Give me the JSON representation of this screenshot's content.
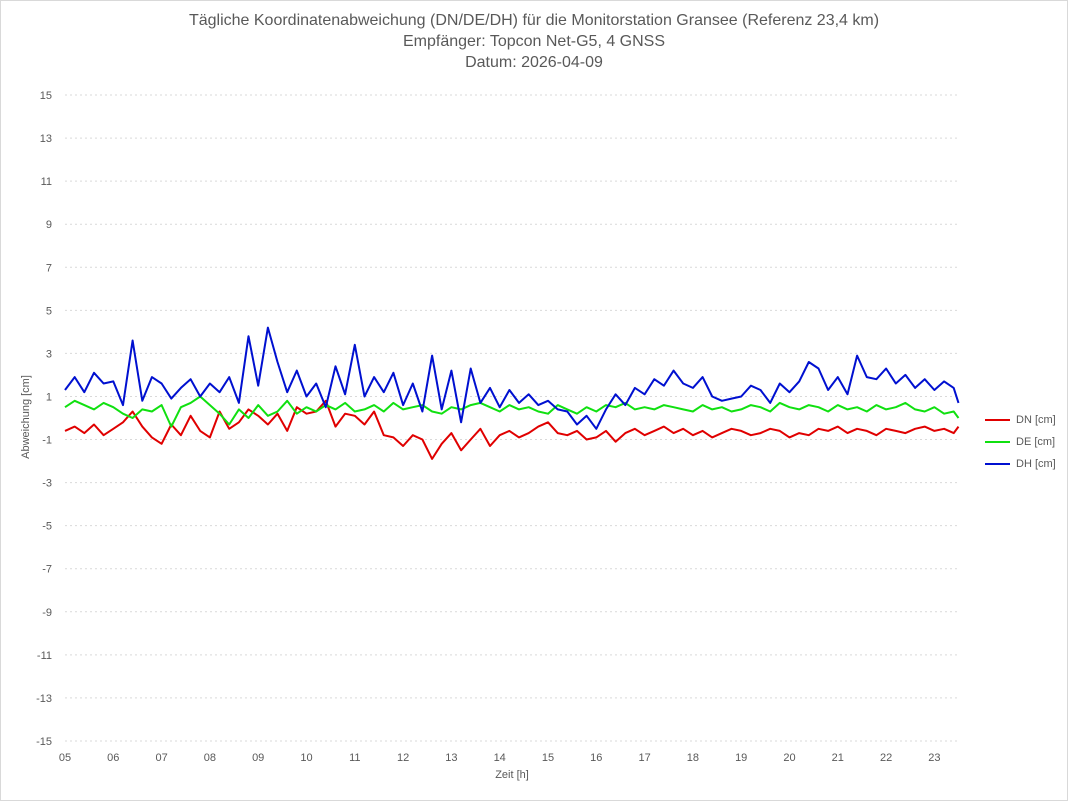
{
  "chart_data": {
    "type": "line",
    "title": "Tägliche Koordinatenabweichung (DN/DE/DH) für die Monitorstation Gransee (Referenz 23,4 km)",
    "subtitle_1": "Empfänger: Topcon Net-G5, 4 GNSS",
    "subtitle_2": "Datum: 2026-04-09",
    "xlabel": "Zeit [h]",
    "ylabel": "Abweichung [cm]",
    "xlim": [
      5,
      23.6
    ],
    "ylim": [
      -15,
      15
    ],
    "x_ticks": [
      "05",
      "06",
      "07",
      "08",
      "09",
      "10",
      "11",
      "12",
      "13",
      "14",
      "15",
      "16",
      "17",
      "18",
      "19",
      "20",
      "21",
      "22",
      "23"
    ],
    "y_ticks": [
      "15",
      "13",
      "11",
      "9",
      "7",
      "5",
      "3",
      "1",
      "-1",
      "-3",
      "-5",
      "-7",
      "-9",
      "-11",
      "-13",
      "-15"
    ],
    "grid": "horizontal-dotted",
    "legend_position": "right",
    "x": [
      5.0,
      5.2,
      5.4,
      5.6,
      5.8,
      6.0,
      6.2,
      6.4,
      6.6,
      6.8,
      7.0,
      7.2,
      7.4,
      7.6,
      7.8,
      8.0,
      8.2,
      8.4,
      8.6,
      8.8,
      9.0,
      9.2,
      9.4,
      9.6,
      9.8,
      10.0,
      10.2,
      10.4,
      10.6,
      10.8,
      11.0,
      11.2,
      11.4,
      11.6,
      11.8,
      12.0,
      12.2,
      12.4,
      12.6,
      12.8,
      13.0,
      13.2,
      13.4,
      13.6,
      13.8,
      14.0,
      14.2,
      14.4,
      14.6,
      14.8,
      15.0,
      15.2,
      15.4,
      15.6,
      15.8,
      16.0,
      16.2,
      16.4,
      16.6,
      16.8,
      17.0,
      17.2,
      17.4,
      17.6,
      17.8,
      18.0,
      18.2,
      18.4,
      18.6,
      18.8,
      19.0,
      19.2,
      19.4,
      19.6,
      19.8,
      20.0,
      20.2,
      20.4,
      20.6,
      20.8,
      21.0,
      21.2,
      21.4,
      21.6,
      21.8,
      22.0,
      22.2,
      22.4,
      22.6,
      22.8,
      23.0,
      23.2,
      23.4,
      23.5
    ],
    "series": [
      {
        "name": "DN [cm]",
        "color": "#e00000",
        "values": [
          -0.6,
          -0.4,
          -0.7,
          -0.3,
          -0.8,
          -0.5,
          -0.2,
          0.3,
          -0.4,
          -0.9,
          -1.2,
          -0.3,
          -0.8,
          0.1,
          -0.6,
          -0.9,
          0.3,
          -0.5,
          -0.2,
          0.4,
          0.1,
          -0.3,
          0.2,
          -0.6,
          0.5,
          0.2,
          0.3,
          0.8,
          -0.4,
          0.2,
          0.1,
          -0.3,
          0.3,
          -0.8,
          -0.9,
          -1.3,
          -0.8,
          -1.0,
          -1.9,
          -1.2,
          -0.7,
          -1.5,
          -1.0,
          -0.5,
          -1.3,
          -0.8,
          -0.6,
          -0.9,
          -0.7,
          -0.4,
          -0.2,
          -0.7,
          -0.8,
          -0.6,
          -1.0,
          -0.9,
          -0.6,
          -1.1,
          -0.7,
          -0.5,
          -0.8,
          -0.6,
          -0.4,
          -0.7,
          -0.5,
          -0.8,
          -0.6,
          -0.9,
          -0.7,
          -0.5,
          -0.6,
          -0.8,
          -0.7,
          -0.5,
          -0.6,
          -0.9,
          -0.7,
          -0.8,
          -0.5,
          -0.6,
          -0.4,
          -0.7,
          -0.5,
          -0.6,
          -0.8,
          -0.5,
          -0.6,
          -0.7,
          -0.5,
          -0.4,
          -0.6,
          -0.5,
          -0.7,
          -0.4
        ]
      },
      {
        "name": "DE [cm]",
        "color": "#10e010",
        "values": [
          0.5,
          0.8,
          0.6,
          0.4,
          0.7,
          0.5,
          0.2,
          0.0,
          0.4,
          0.3,
          0.6,
          -0.4,
          0.5,
          0.7,
          1.0,
          0.6,
          0.2,
          -0.3,
          0.4,
          0.0,
          0.6,
          0.1,
          0.3,
          0.8,
          0.2,
          0.5,
          0.3,
          0.6,
          0.4,
          0.7,
          0.3,
          0.4,
          0.6,
          0.3,
          0.7,
          0.4,
          0.5,
          0.6,
          0.3,
          0.2,
          0.5,
          0.4,
          0.6,
          0.7,
          0.5,
          0.3,
          0.6,
          0.4,
          0.5,
          0.3,
          0.2,
          0.6,
          0.4,
          0.2,
          0.5,
          0.3,
          0.6,
          0.5,
          0.7,
          0.4,
          0.5,
          0.4,
          0.6,
          0.5,
          0.4,
          0.3,
          0.6,
          0.4,
          0.5,
          0.3,
          0.4,
          0.6,
          0.5,
          0.3,
          0.7,
          0.5,
          0.4,
          0.6,
          0.5,
          0.3,
          0.6,
          0.4,
          0.5,
          0.3,
          0.6,
          0.4,
          0.5,
          0.7,
          0.4,
          0.3,
          0.5,
          0.2,
          0.3,
          0.0
        ]
      },
      {
        "name": "DH [cm]",
        "color": "#0010d0",
        "values": [
          1.3,
          1.9,
          1.2,
          2.1,
          1.6,
          1.7,
          0.6,
          3.6,
          0.8,
          1.9,
          1.6,
          0.9,
          1.4,
          1.8,
          1.0,
          1.6,
          1.2,
          1.9,
          0.7,
          3.8,
          1.5,
          4.2,
          2.6,
          1.2,
          2.2,
          1.0,
          1.6,
          0.5,
          2.4,
          1.1,
          3.4,
          1.0,
          1.9,
          1.2,
          2.1,
          0.6,
          1.6,
          0.3,
          2.9,
          0.4,
          2.2,
          -0.2,
          2.3,
          0.7,
          1.4,
          0.5,
          1.3,
          0.7,
          1.1,
          0.6,
          0.8,
          0.4,
          0.3,
          -0.3,
          0.1,
          -0.5,
          0.4,
          1.1,
          0.6,
          1.4,
          1.1,
          1.8,
          1.5,
          2.2,
          1.6,
          1.4,
          1.9,
          1.0,
          0.8,
          0.9,
          1.0,
          1.5,
          1.3,
          0.7,
          1.6,
          1.2,
          1.7,
          2.6,
          2.3,
          1.3,
          1.9,
          1.1,
          2.9,
          1.9,
          1.8,
          2.3,
          1.6,
          2.0,
          1.4,
          1.8,
          1.3,
          1.7,
          1.4,
          0.7
        ]
      }
    ]
  }
}
